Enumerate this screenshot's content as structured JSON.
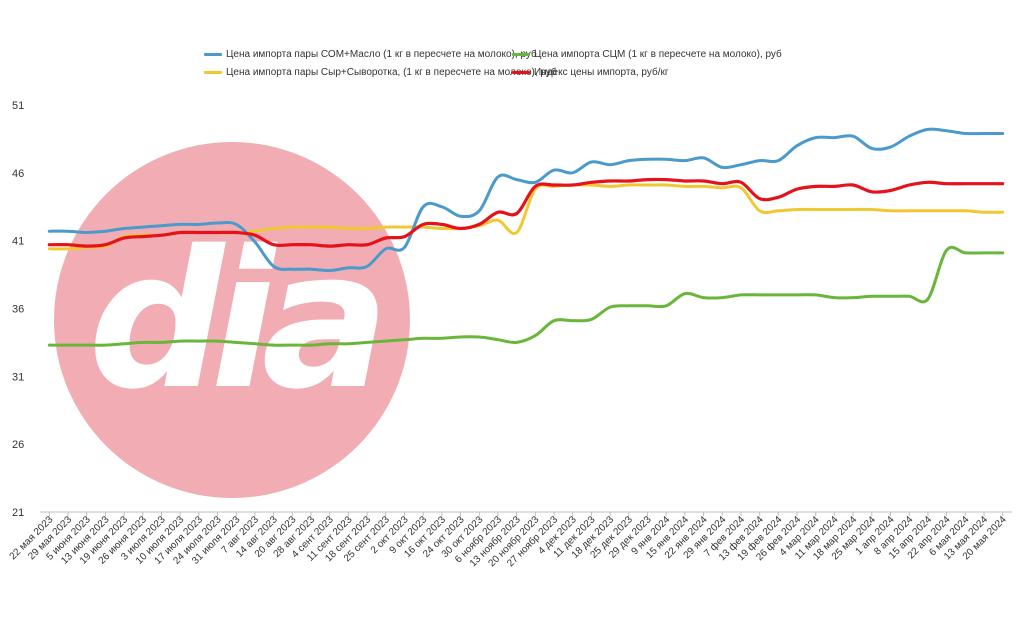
{
  "chart_data": {
    "type": "line",
    "title": "",
    "xlabel": "",
    "ylabel": "",
    "ylim": [
      21,
      51
    ],
    "y_ticks": [
      21,
      26,
      31,
      36,
      41,
      46,
      51
    ],
    "grid": false,
    "legend_placement": "top",
    "categories": [
      "22 мая 2023",
      "29 мая 2023",
      "5 июня 2023",
      "13 июня 2023",
      "19 июня 2023",
      "26 июня 2023",
      "3 июля 2023",
      "10 июля 2023",
      "17 июля 2023",
      "24 июля 2023",
      "31 июля 2023",
      "7 авг 2023",
      "14 авг 2023",
      "20 авг 2023",
      "28 авг 2023",
      "4 сент 2023",
      "11 сент 2023",
      "18 сент 2023",
      "25 сент 2023",
      "2 окт 2023",
      "9 окт 2023",
      "16 окт 2023",
      "24 окт 2023",
      "30 окт 2023",
      "6 ноябр 2023",
      "13 ноябр 2023",
      "20 ноябр 2023",
      "27 ноябр 2023",
      "4 дек 2023",
      "11 дек 2023",
      "18 дек 2023",
      "25 дек 2023",
      "29 дек 2023",
      "9 янв 2024",
      "15 янв 2024",
      "22 янв 2024",
      "29 янв 2024",
      "7 фев 2024",
      "13 фев 2024",
      "19 фев 2024",
      "26 фев 2024",
      "4 мар 2024",
      "11 мар 2024",
      "18 мар 2024",
      "25 мар 2024",
      "1 апр 2024",
      "8 апр 2024",
      "15 апр 2024",
      "22 апр 2024",
      "6 мая 2024",
      "13 мая 2024",
      "20 мая 2024"
    ],
    "series": [
      {
        "name": "Цена импорта пары СОМ+Масло (1 кг в пересчете на молоко), руб",
        "color": "#4a9acb",
        "values": [
          41.7,
          41.7,
          41.6,
          41.7,
          41.9,
          42.0,
          42.1,
          42.2,
          42.2,
          42.3,
          42.2,
          40.9,
          39.1,
          38.9,
          38.9,
          38.8,
          39.0,
          39.1,
          40.4,
          40.5,
          43.5,
          43.5,
          42.8,
          43.2,
          45.7,
          45.5,
          45.3,
          46.2,
          46.0,
          46.8,
          46.6,
          46.9,
          47.0,
          47.0,
          46.9,
          47.1,
          46.4,
          46.6,
          46.9,
          46.9,
          48.0,
          48.6,
          48.6,
          48.7,
          47.8,
          47.9,
          48.7,
          49.2,
          49.1,
          48.9,
          48.9,
          48.9
        ]
      },
      {
        "name": "Цена импорта СЦМ (1 кг в пересчете на молоко), руб",
        "color": "#6ab63a",
        "values": [
          33.3,
          33.3,
          33.3,
          33.3,
          33.4,
          33.5,
          33.5,
          33.6,
          33.6,
          33.6,
          33.5,
          33.4,
          33.3,
          33.3,
          33.3,
          33.4,
          33.4,
          33.5,
          33.6,
          33.7,
          33.8,
          33.8,
          33.9,
          33.9,
          33.7,
          33.5,
          34.0,
          35.1,
          35.1,
          35.2,
          36.1,
          36.2,
          36.2,
          36.2,
          37.1,
          36.8,
          36.8,
          37.0,
          37.0,
          37.0,
          37.0,
          37.0,
          36.8,
          36.8,
          36.9,
          36.9,
          36.9,
          36.7,
          40.3,
          40.1,
          40.1,
          40.1
        ]
      },
      {
        "name": "Цена импорта пары Сыр+Сыворотка, (1 кг в пересчете на молоко), руб",
        "color": "#f2c832",
        "values": [
          40.4,
          40.4,
          40.5,
          40.6,
          41.3,
          41.4,
          41.4,
          41.6,
          41.6,
          41.6,
          41.6,
          41.7,
          41.9,
          42.0,
          42.0,
          42.0,
          41.9,
          41.9,
          42.0,
          42.0,
          42.0,
          41.9,
          41.9,
          42.1,
          42.5,
          41.6,
          44.8,
          45.0,
          45.1,
          45.1,
          45.0,
          45.1,
          45.1,
          45.1,
          45.0,
          45.0,
          44.9,
          44.9,
          43.2,
          43.2,
          43.3,
          43.3,
          43.3,
          43.3,
          43.3,
          43.2,
          43.2,
          43.2,
          43.2,
          43.2,
          43.1,
          43.1
        ]
      },
      {
        "name": "Индекс цены импорта, руб/кг",
        "color": "#e3121b",
        "values": [
          40.7,
          40.7,
          40.6,
          40.7,
          41.2,
          41.3,
          41.4,
          41.6,
          41.6,
          41.6,
          41.6,
          41.4,
          40.7,
          40.7,
          40.7,
          40.6,
          40.7,
          40.7,
          41.2,
          41.3,
          42.2,
          42.2,
          41.9,
          42.2,
          43.1,
          43.0,
          45.0,
          45.1,
          45.1,
          45.3,
          45.4,
          45.4,
          45.5,
          45.5,
          45.4,
          45.4,
          45.2,
          45.3,
          44.1,
          44.2,
          44.8,
          45.0,
          45.0,
          45.1,
          44.6,
          44.7,
          45.1,
          45.3,
          45.2,
          45.2,
          45.2,
          45.2
        ]
      }
    ]
  },
  "watermark": {
    "text": "dia",
    "circle_color": "#f0a4ab",
    "text_color": "#ffffff"
  }
}
